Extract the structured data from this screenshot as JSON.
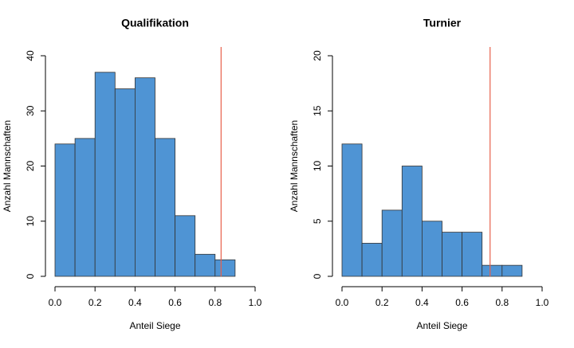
{
  "chart_data": [
    {
      "type": "histogram",
      "title": "Qualifikation",
      "xlabel": "Anteil Siege",
      "ylabel": "Anzahl Mannschaften",
      "bins": [
        0,
        0.1,
        0.2,
        0.3,
        0.4,
        0.5,
        0.6,
        0.7,
        0.8,
        0.9
      ],
      "counts": [
        24,
        25,
        37,
        34,
        36,
        25,
        11,
        4,
        3
      ],
      "color": "#4f94d4",
      "xlim": [
        0,
        1
      ],
      "xticks": [
        {
          "value": 0,
          "label": "0.0"
        },
        0.2,
        0.4,
        0.6,
        0.8,
        {
          "value": 1,
          "label": "1.0"
        }
      ],
      "ylim": [
        0,
        40
      ],
      "yticks": [
        0,
        10,
        20,
        30,
        40
      ],
      "vline": {
        "value": 0.83,
        "color": "#e8604c"
      }
    },
    {
      "type": "histogram",
      "title": "Turnier",
      "xlabel": "Anteil Siege",
      "ylabel": "Anzahl Mannschaften",
      "bins": [
        0,
        0.1,
        0.2,
        0.3,
        0.4,
        0.5,
        0.6,
        0.7,
        0.8,
        0.9
      ],
      "counts": [
        12,
        3,
        6,
        10,
        5,
        4,
        4,
        1,
        1
      ],
      "color": "#4f94d4",
      "xlim": [
        0,
        1
      ],
      "xticks": [
        {
          "value": 0,
          "label": "0.0"
        },
        0.2,
        0.4,
        0.6,
        0.8,
        {
          "value": 1,
          "label": "1.0"
        }
      ],
      "ylim": [
        0,
        20
      ],
      "yticks": [
        0,
        5,
        10,
        15,
        20
      ],
      "vline": {
        "value": 0.74,
        "color": "#e8604c"
      }
    }
  ]
}
